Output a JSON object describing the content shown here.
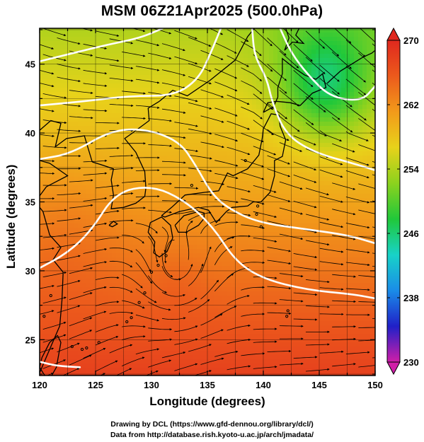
{
  "title": "MSM 06Z21Apr2025 (500.0hPa)",
  "xlabel": "Longitude (degrees)",
  "ylabel": "Latitude  (degrees)",
  "credits": {
    "line1": "Drawing by DCL (https://www.gfd-dennou.org/library/dcl/)",
    "line2": "Data from http://database.rish.kyoto-u.ac.jp/arch/jmadata/"
  },
  "chart_data": {
    "type": "heatmap",
    "title": "MSM 06Z21Apr2025 (500.0hPa)",
    "xlabel": "Longitude (degrees)",
    "ylabel": "Latitude  (degrees)",
    "xlim": [
      120,
      150
    ],
    "ylim": [
      22.4,
      47.6
    ],
    "x_ticks": [
      120,
      125,
      130,
      135,
      140,
      145,
      150
    ],
    "y_ticks": [
      25,
      30,
      35,
      40,
      45
    ],
    "grid": true,
    "colorbar": {
      "ticks": [
        230,
        238,
        246,
        254,
        262,
        270
      ],
      "range": [
        230,
        270
      ],
      "colors": [
        "#d01ea8",
        "#2020c8",
        "#1a8ce8",
        "#18d2c8",
        "#20c83a",
        "#8cd21e",
        "#e8d21a",
        "#f29a1a",
        "#ec5a1c",
        "#e0281e"
      ]
    },
    "contours_white": [
      {
        "level": 252,
        "points": [
          [
            120,
            45.2
          ],
          [
            123,
            45.8
          ],
          [
            126,
            46.4
          ],
          [
            129,
            46.9
          ],
          [
            131,
            47.6
          ]
        ]
      },
      {
        "level": 258,
        "points": [
          [
            120,
            42.0
          ],
          [
            124,
            42.3
          ],
          [
            128,
            42.7
          ],
          [
            132,
            42.7
          ],
          [
            134.2,
            43.9
          ],
          [
            135.3,
            45.8
          ],
          [
            136.2,
            47.6
          ]
        ]
      },
      {
        "level": 250,
        "points": [
          [
            141.5,
            47.6
          ],
          [
            142.5,
            45.8
          ],
          [
            144.0,
            44.2
          ],
          [
            146.0,
            42.6
          ],
          [
            148.8,
            42.3
          ],
          [
            150,
            43.4
          ]
        ]
      },
      {
        "level": 255,
        "points": [
          [
            139,
            47.6
          ],
          [
            139.2,
            45.6
          ],
          [
            140.3,
            44.0
          ],
          [
            140.8,
            42.2
          ],
          [
            142.0,
            39.9
          ],
          [
            144.5,
            38.6
          ],
          [
            148,
            37.8
          ],
          [
            150,
            37.3
          ]
        ]
      },
      {
        "level": 261,
        "points": [
          [
            120,
            38.1
          ],
          [
            122.8,
            38.5
          ],
          [
            126.4,
            40.2
          ],
          [
            129.5,
            40.3
          ],
          [
            132.5,
            39.4
          ],
          [
            134.0,
            37.6
          ],
          [
            135.3,
            35.7
          ],
          [
            136.7,
            34.6
          ],
          [
            139.5,
            33.5
          ],
          [
            144,
            33.0
          ],
          [
            147.5,
            32.6
          ],
          [
            150,
            32.0
          ]
        ]
      },
      {
        "level": 264,
        "points": [
          [
            120,
            30.2
          ],
          [
            122.5,
            31.3
          ],
          [
            124.6,
            32.9
          ],
          [
            126.8,
            35.7
          ],
          [
            130,
            36.2
          ],
          [
            133,
            35.1
          ],
          [
            135.5,
            33.2
          ],
          [
            137.5,
            30.7
          ],
          [
            140,
            29.4
          ],
          [
            144,
            28.6
          ],
          [
            148,
            28.3
          ],
          [
            150,
            28.0
          ]
        ]
      },
      {
        "level": 268,
        "points": [
          [
            120,
            23.4
          ],
          [
            121.5,
            23.1
          ],
          [
            123.6,
            23.0
          ]
        ]
      }
    ],
    "vortex_center": [
      132.3,
      29.3
    ]
  }
}
